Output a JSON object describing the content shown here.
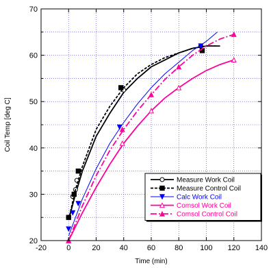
{
  "chart_data": {
    "type": "line",
    "title": "",
    "xlabel": "Time (min)",
    "ylabel": "Coil Temp [deg C]",
    "xlim": [
      -20,
      140
    ],
    "ylim": [
      20,
      70
    ],
    "xticks": [
      -20,
      0,
      20,
      40,
      60,
      80,
      100,
      120,
      140
    ],
    "yticks": [
      20,
      30,
      40,
      50,
      60,
      70
    ],
    "grid": true,
    "legend_position": "bottom-right",
    "series": [
      {
        "name": "Measure Work Coil",
        "color": "#000000",
        "line": "solid",
        "marker": "circle-open",
        "markers": [
          [
            0,
            25
          ],
          [
            3,
            29.5
          ],
          [
            5,
            31
          ],
          [
            6,
            33
          ],
          [
            40,
            52.5
          ],
          [
            96,
            62
          ]
        ],
        "curve": [
          [
            0,
            24.5
          ],
          [
            5,
            30
          ],
          [
            10,
            35
          ],
          [
            20,
            42.5
          ],
          [
            30,
            47.5
          ],
          [
            40,
            52
          ],
          [
            50,
            55
          ],
          [
            60,
            57.5
          ],
          [
            70,
            59
          ],
          [
            80,
            60.5
          ],
          [
            90,
            61.5
          ],
          [
            100,
            62
          ],
          [
            110,
            62
          ]
        ]
      },
      {
        "name": "Measure Control Coil",
        "color": "#000000",
        "line": "dashed",
        "marker": "square-filled",
        "markers": [
          [
            0,
            25
          ],
          [
            4,
            30
          ],
          [
            7,
            35
          ],
          [
            38,
            53
          ],
          [
            97,
            61
          ]
        ],
        "curve": [
          [
            0,
            24.5
          ],
          [
            5,
            31
          ],
          [
            10,
            36
          ],
          [
            20,
            44
          ],
          [
            30,
            49
          ],
          [
            40,
            53
          ],
          [
            50,
            56
          ],
          [
            60,
            58
          ],
          [
            70,
            59.5
          ],
          [
            80,
            60.5
          ],
          [
            90,
            61.5
          ],
          [
            100,
            62
          ],
          [
            107,
            62
          ]
        ]
      },
      {
        "name": "Calc Work Coil",
        "color": "#0000ff",
        "line": "solid",
        "marker": "triangle-down-filled",
        "markers": [
          [
            0,
            22.5
          ],
          [
            3,
            26
          ],
          [
            7,
            28
          ],
          [
            37,
            44.5
          ],
          [
            96,
            62
          ]
        ],
        "curve": [
          [
            0,
            21
          ],
          [
            10,
            29
          ],
          [
            20,
            35.5
          ],
          [
            30,
            41
          ],
          [
            40,
            45.5
          ],
          [
            50,
            49.5
          ],
          [
            60,
            53
          ],
          [
            70,
            56
          ],
          [
            80,
            58.5
          ],
          [
            90,
            61
          ],
          [
            100,
            63
          ],
          [
            108,
            65
          ]
        ]
      },
      {
        "name": "Comsol Work Coil",
        "color": "#ff0099",
        "line": "solid",
        "marker": "triangle-up-open",
        "markers": [
          [
            0,
            20
          ],
          [
            39,
            41
          ],
          [
            60,
            48
          ],
          [
            80,
            53
          ],
          [
            120,
            59
          ]
        ],
        "curve": [
          [
            0,
            20
          ],
          [
            10,
            26
          ],
          [
            20,
            31.5
          ],
          [
            30,
            36.5
          ],
          [
            40,
            41
          ],
          [
            50,
            44.7
          ],
          [
            60,
            48
          ],
          [
            70,
            50.8
          ],
          [
            80,
            53
          ],
          [
            90,
            55
          ],
          [
            100,
            56.7
          ],
          [
            110,
            58
          ],
          [
            120,
            59
          ]
        ]
      },
      {
        "name": "Comsol Control Coil",
        "color": "#ff0099",
        "line": "dashdot",
        "marker": "triangle-up-filled",
        "markers": [
          [
            0,
            20
          ],
          [
            39,
            44
          ],
          [
            60,
            51.5
          ],
          [
            80,
            57.5
          ],
          [
            120,
            64.5
          ]
        ],
        "curve": [
          [
            0,
            20
          ],
          [
            10,
            27.5
          ],
          [
            20,
            34
          ],
          [
            30,
            39.5
          ],
          [
            40,
            44
          ],
          [
            50,
            48
          ],
          [
            60,
            51.5
          ],
          [
            70,
            54.8
          ],
          [
            80,
            57.5
          ],
          [
            90,
            60
          ],
          [
            100,
            62
          ],
          [
            110,
            63.5
          ],
          [
            120,
            64.5
          ]
        ]
      }
    ]
  }
}
